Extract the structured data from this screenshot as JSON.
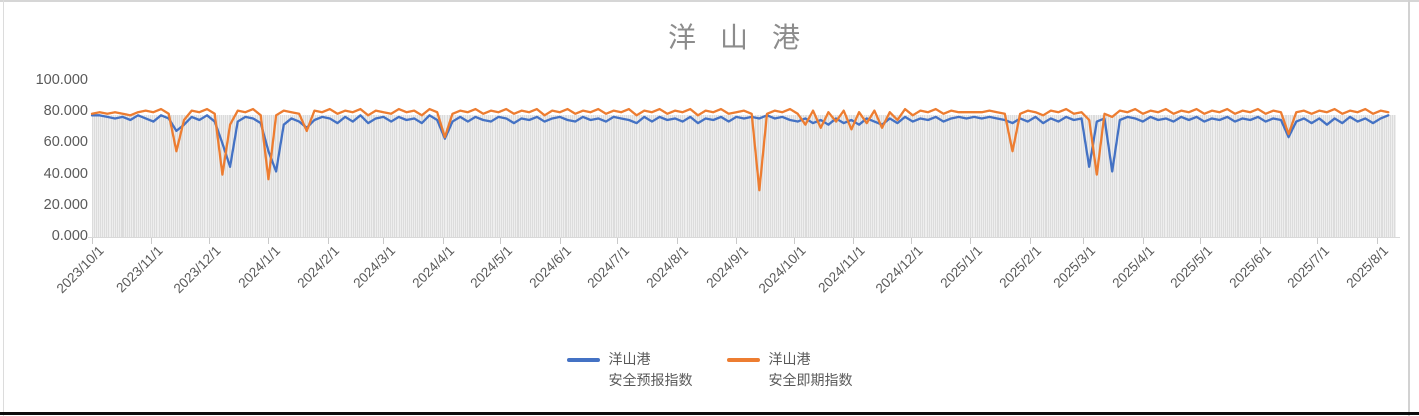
{
  "ui": {
    "title": "洋山港",
    "legend": {
      "items": [
        {
          "label_line1": "洋山港",
          "label_line2": "安全预报指数",
          "color": "#4472C4",
          "series_key": "forecast"
        },
        {
          "label_line1": "洋山港",
          "label_line2": "安全即期指数",
          "color": "#ED7D31",
          "series_key": "spot"
        }
      ]
    },
    "colors": {
      "title_text": "#8c8c8c",
      "axis_text": "#595959",
      "axis_line": "#d9d9d9",
      "background_bar": "#dcdcdc",
      "forecast_line": "#4472C4",
      "spot_line": "#ED7D31",
      "frame_border": "#d6d6d6",
      "bottom_edge": "#0d0d0d"
    }
  },
  "chart_data": {
    "type": "line",
    "title": "洋山港",
    "start_date": "2023/10/1",
    "sample_interval_days": 4,
    "total_span_days": 680,
    "ylim": [
      0,
      100
    ],
    "grid": false,
    "legend_position": "bottom-center",
    "y_tick_labels": [
      "0.000",
      "20.000",
      "40.000",
      "60.000",
      "80.000",
      "100.000"
    ],
    "x_tick_labels": [
      "2023/10/1",
      "2023/11/1",
      "2023/12/1",
      "2024/1/1",
      "2024/2/1",
      "2024/3/1",
      "2024/4/1",
      "2024/5/1",
      "2024/6/1",
      "2024/7/1",
      "2024/8/1",
      "2024/9/1",
      "2024/10/1",
      "2024/11/1",
      "2024/12/1",
      "2025/1/1",
      "2025/2/1",
      "2025/3/1",
      "2025/4/1",
      "2025/5/1",
      "2025/6/1",
      "2025/7/1",
      "2025/8/1"
    ],
    "x_tick_day_offsets": [
      0,
      31,
      61,
      92,
      123,
      152,
      183,
      213,
      244,
      274,
      305,
      336,
      366,
      397,
      427,
      458,
      489,
      517,
      548,
      578,
      609,
      639,
      670
    ],
    "background_bars": {
      "type": "bar",
      "interval_days": 1,
      "approx_value": 78,
      "color": "#dcdcdc",
      "note": "dense daily gray columns of near-constant height behind the lines"
    },
    "series": [
      {
        "name": "洋山港安全预报指数",
        "color": "#4472C4",
        "values": [
          78,
          78,
          77,
          76,
          77,
          75,
          78,
          76,
          74,
          78,
          76,
          68,
          72,
          77,
          75,
          78,
          74,
          60,
          45,
          74,
          77,
          76,
          73,
          55,
          42,
          72,
          76,
          74,
          70,
          75,
          77,
          76,
          73,
          77,
          74,
          78,
          73,
          76,
          77,
          74,
          77,
          75,
          76,
          73,
          78,
          75,
          63,
          74,
          77,
          74,
          77,
          75,
          74,
          77,
          76,
          73,
          76,
          75,
          77,
          74,
          76,
          77,
          75,
          74,
          77,
          75,
          76,
          74,
          77,
          76,
          75,
          73,
          77,
          74,
          77,
          75,
          76,
          74,
          77,
          73,
          76,
          75,
          77,
          74,
          77,
          76,
          77,
          76,
          78,
          76,
          77,
          75,
          74,
          76,
          73,
          75,
          72,
          76,
          73,
          75,
          72,
          76,
          74,
          72,
          76,
          73,
          77,
          74,
          76,
          75,
          77,
          74,
          76,
          77,
          76,
          77,
          76,
          77,
          76,
          75,
          73,
          76,
          74,
          77,
          73,
          76,
          74,
          77,
          75,
          76,
          45,
          74,
          76,
          42,
          75,
          77,
          76,
          74,
          77,
          75,
          76,
          74,
          77,
          75,
          77,
          74,
          76,
          75,
          77,
          74,
          76,
          75,
          77,
          74,
          76,
          75,
          64,
          74,
          76,
          73,
          76,
          72,
          76,
          73,
          77,
          74,
          76,
          73,
          76,
          78
        ]
      },
      {
        "name": "洋山港安全即期指数",
        "color": "#ED7D31",
        "values": [
          79,
          80,
          79,
          80,
          79,
          78,
          80,
          81,
          80,
          82,
          79,
          55,
          75,
          81,
          80,
          82,
          79,
          40,
          72,
          81,
          80,
          82,
          78,
          37,
          78,
          81,
          80,
          79,
          68,
          81,
          80,
          82,
          79,
          81,
          80,
          82,
          78,
          81,
          80,
          79,
          82,
          80,
          81,
          78,
          82,
          80,
          64,
          79,
          81,
          80,
          82,
          79,
          81,
          80,
          82,
          79,
          81,
          80,
          82,
          78,
          81,
          80,
          82,
          79,
          81,
          80,
          82,
          79,
          81,
          80,
          82,
          78,
          81,
          80,
          82,
          79,
          81,
          80,
          82,
          78,
          81,
          80,
          82,
          79,
          80,
          81,
          79,
          30,
          79,
          81,
          80,
          82,
          79,
          72,
          81,
          70,
          80,
          74,
          81,
          69,
          80,
          73,
          81,
          70,
          80,
          75,
          82,
          78,
          81,
          80,
          82,
          79,
          81,
          80,
          80,
          80,
          80,
          81,
          80,
          79,
          55,
          79,
          81,
          80,
          78,
          81,
          80,
          82,
          79,
          80,
          75,
          40,
          79,
          77,
          81,
          80,
          82,
          79,
          81,
          80,
          82,
          79,
          81,
          80,
          82,
          79,
          81,
          80,
          82,
          79,
          81,
          80,
          82,
          79,
          81,
          80,
          66,
          80,
          81,
          79,
          81,
          80,
          82,
          79,
          81,
          80,
          82,
          79,
          81,
          80
        ]
      }
    ]
  }
}
